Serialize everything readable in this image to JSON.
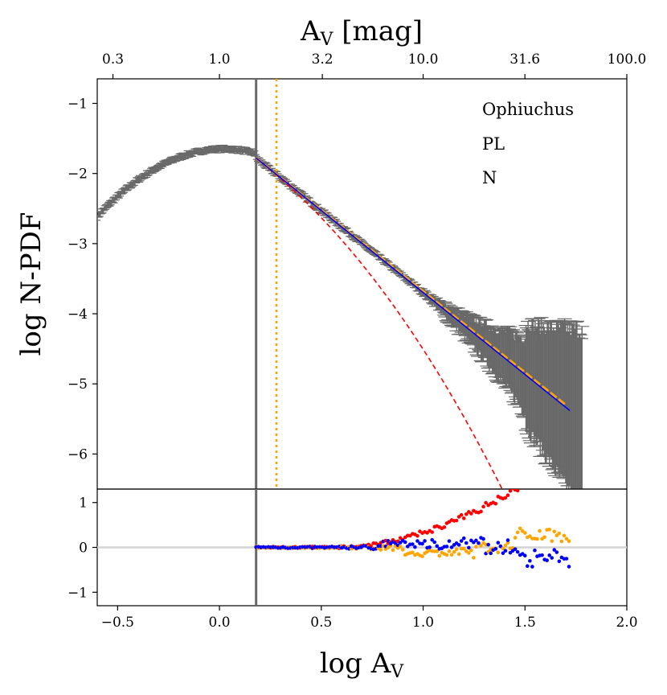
{
  "chart_data": {
    "type": "scatter",
    "title": "",
    "xlabel": "log A",
    "xlabel_sub": "V",
    "ylabel": "log N-PDF",
    "top_xlabel": "A",
    "top_xlabel_sub": "V",
    "top_xlabel_unit": " [mag]",
    "xlim": [
      -0.6,
      2.0
    ],
    "ylim_main": [
      -6.5,
      -0.65
    ],
    "ylim_resid": [
      -1.3,
      1.3
    ],
    "x_ticks": [
      -0.5,
      0.0,
      0.5,
      1.0,
      1.5,
      2.0
    ],
    "x_tick_labels": [
      "−0.5",
      "0.0",
      "0.5",
      "1.0",
      "1.5",
      "2.0"
    ],
    "y_ticks_main": [
      -1,
      -2,
      -3,
      -4,
      -5,
      -6
    ],
    "y_tick_labels_main": [
      "−1",
      "−2",
      "−3",
      "−4",
      "−5",
      "−6"
    ],
    "y_ticks_resid": [
      1,
      0,
      -1
    ],
    "y_tick_labels_resid": [
      "1",
      "0",
      "−1"
    ],
    "top_ticks": [
      0.3,
      1.0,
      3.2,
      10.0,
      31.6,
      100.0
    ],
    "top_tick_labels": [
      "0.3",
      "1.0",
      "3.2",
      "10.0",
      "31.6",
      "100.0"
    ],
    "annotations": [
      "Ophiuchus",
      "PL",
      "N"
    ],
    "vlines": [
      {
        "x": 0.18,
        "color": "#696969",
        "style": "solid"
      },
      {
        "x": 0.28,
        "color": "#ffa500",
        "style": "dotted"
      }
    ],
    "series": [
      {
        "name": "N-PDF",
        "kind": "errorbar",
        "color": "#696969",
        "x": [
          -0.6,
          -0.5,
          -0.4,
          -0.3,
          -0.2,
          -0.1,
          0.0,
          0.1,
          0.2,
          0.3,
          0.4,
          0.5,
          0.6,
          0.7,
          0.8,
          0.9,
          1.0,
          1.1,
          1.2,
          1.3,
          1.4,
          1.5,
          1.6,
          1.7
        ],
        "y": [
          -2.35,
          -2.2,
          -2.05,
          -1.9,
          -1.78,
          -1.7,
          -1.65,
          -1.68,
          -1.8,
          -2.02,
          -2.25,
          -2.5,
          -2.75,
          -3.0,
          -3.25,
          -3.48,
          -3.7,
          -3.9,
          -4.12,
          -4.35,
          -4.55,
          -4.78,
          -5.0,
          -5.2
        ]
      },
      {
        "name": "PL fit",
        "kind": "line",
        "color": "#0000ff",
        "x": [
          0.18,
          1.72
        ],
        "y": [
          -1.78,
          -5.38
        ]
      },
      {
        "name": "PL orange",
        "kind": "line",
        "color": "#ffa500",
        "x": [
          0.18,
          1.7
        ],
        "y": [
          -1.78,
          -5.3
        ]
      },
      {
        "name": "LN fit",
        "kind": "dashed",
        "color": "#ff0000"
      },
      {
        "name": "residual LN",
        "kind": "resid",
        "color": "#ff0000"
      },
      {
        "name": "residual PL",
        "kind": "resid",
        "color": "#0000ff"
      },
      {
        "name": "residual PL orange",
        "kind": "resid",
        "color": "#ffa500"
      }
    ]
  }
}
